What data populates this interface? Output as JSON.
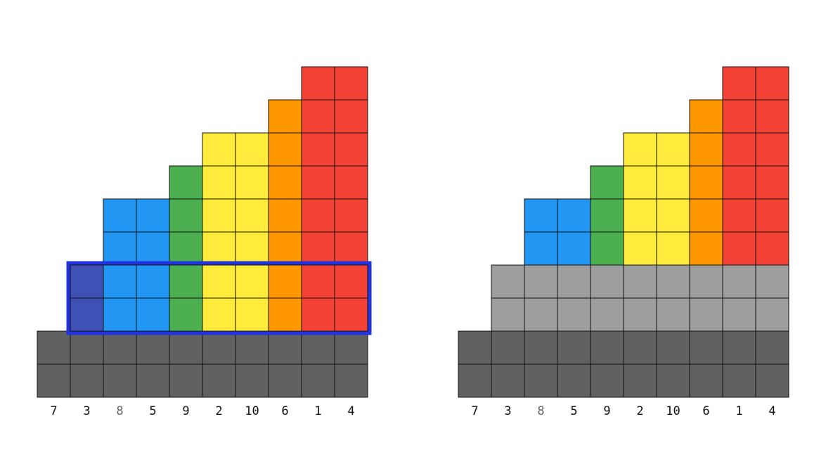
{
  "colors": {
    "gray": "#616161",
    "lightgray": "#9e9e9e",
    "indigo": "#3f51b5",
    "blue": "#2196f3",
    "green": "#4caf50",
    "yellow": "#ffeb3b",
    "orange": "#ff9800",
    "red": "#f44336",
    "highlight": "#2233dd",
    "muted_label": "#666666"
  },
  "panels": [
    {
      "name": "left",
      "labels": [
        "7",
        "3",
        "8",
        "5",
        "9",
        "2",
        "10",
        "6",
        "1",
        "4"
      ],
      "muted_label_index": 2,
      "columns": [
        [
          "gray",
          "gray"
        ],
        [
          "gray",
          "gray",
          "indigo",
          "indigo"
        ],
        [
          "gray",
          "gray",
          "blue",
          "blue",
          "blue",
          "blue"
        ],
        [
          "gray",
          "gray",
          "blue",
          "blue",
          "blue",
          "blue"
        ],
        [
          "gray",
          "gray",
          "green",
          "green",
          "green",
          "green",
          "green"
        ],
        [
          "gray",
          "gray",
          "yellow",
          "yellow",
          "yellow",
          "yellow",
          "yellow",
          "yellow"
        ],
        [
          "gray",
          "gray",
          "yellow",
          "yellow",
          "yellow",
          "yellow",
          "yellow",
          "yellow"
        ],
        [
          "gray",
          "gray",
          "orange",
          "orange",
          "orange",
          "orange",
          "orange",
          "orange",
          "orange"
        ],
        [
          "gray",
          "gray",
          "red",
          "red",
          "red",
          "red",
          "red",
          "red",
          "red",
          "red"
        ],
        [
          "gray",
          "gray",
          "red",
          "red",
          "red",
          "red",
          "red",
          "red",
          "red",
          "red"
        ]
      ],
      "highlight": {
        "col_start": 1,
        "col_end": 9,
        "row_start": 2,
        "row_end": 3
      }
    },
    {
      "name": "right",
      "labels": [
        "7",
        "3",
        "8",
        "5",
        "9",
        "2",
        "10",
        "6",
        "1",
        "4"
      ],
      "muted_label_index": 2,
      "columns": [
        [
          "gray",
          "gray"
        ],
        [
          "gray",
          "gray",
          "lightgray",
          "lightgray"
        ],
        [
          "gray",
          "gray",
          "lightgray",
          "lightgray",
          "blue",
          "blue"
        ],
        [
          "gray",
          "gray",
          "lightgray",
          "lightgray",
          "blue",
          "blue"
        ],
        [
          "gray",
          "gray",
          "lightgray",
          "lightgray",
          "green",
          "green",
          "green"
        ],
        [
          "gray",
          "gray",
          "lightgray",
          "lightgray",
          "yellow",
          "yellow",
          "yellow",
          "yellow"
        ],
        [
          "gray",
          "gray",
          "lightgray",
          "lightgray",
          "yellow",
          "yellow",
          "yellow",
          "yellow"
        ],
        [
          "gray",
          "gray",
          "lightgray",
          "lightgray",
          "orange",
          "orange",
          "orange",
          "orange",
          "orange"
        ],
        [
          "gray",
          "gray",
          "lightgray",
          "lightgray",
          "red",
          "red",
          "red",
          "red",
          "red",
          "red"
        ],
        [
          "gray",
          "gray",
          "lightgray",
          "lightgray",
          "red",
          "red",
          "red",
          "red",
          "red",
          "red"
        ]
      ]
    }
  ]
}
